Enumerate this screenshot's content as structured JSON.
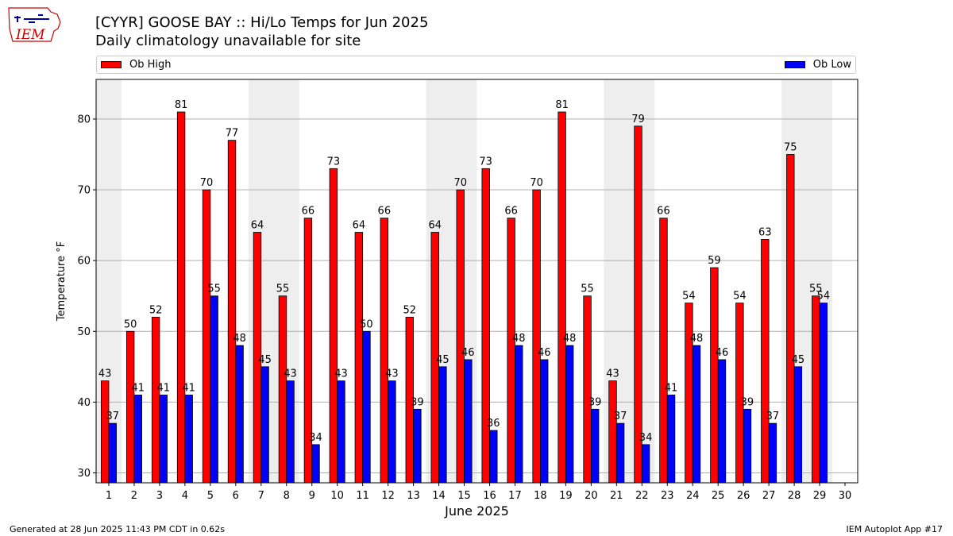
{
  "header": {
    "title_line1": "[CYYR] GOOSE BAY :: Hi/Lo Temps for Jun 2025",
    "title_line2": "Daily climatology unavailable for site",
    "logo_text": "IEM"
  },
  "footer": {
    "left": "Generated at 28 Jun 2025 11:43 PM CDT in 0.62s",
    "right": "IEM Autoplot App #17"
  },
  "colors": {
    "high": "#ff0000",
    "low": "#0000ff",
    "weekend_band": "#eeeeee",
    "grid": "#b0b0b0"
  },
  "chart_data": {
    "type": "bar",
    "xlabel": "June 2025",
    "ylabel": "Temperature °F",
    "ylim": [
      28.6,
      85.6
    ],
    "yticks": [
      30,
      40,
      50,
      60,
      70,
      80
    ],
    "xlim": [
      0.5,
      30.5
    ],
    "grid": "horizontal",
    "legend": "top (Ob High left, Ob Low right)",
    "categories": [
      "1",
      "2",
      "3",
      "4",
      "5",
      "6",
      "7",
      "8",
      "9",
      "10",
      "11",
      "12",
      "13",
      "14",
      "15",
      "16",
      "17",
      "18",
      "19",
      "20",
      "21",
      "22",
      "23",
      "24",
      "25",
      "26",
      "27",
      "28",
      "29",
      "30"
    ],
    "weekend_bands": [
      [
        0.5,
        1.5
      ],
      [
        6.5,
        8.5
      ],
      [
        13.5,
        15.5
      ],
      [
        20.5,
        22.5
      ],
      [
        27.5,
        29.5
      ]
    ],
    "series": [
      {
        "name": "Ob High",
        "values": [
          43,
          50,
          52,
          81,
          70,
          77,
          64,
          55,
          66,
          73,
          64,
          66,
          52,
          64,
          70,
          73,
          66,
          70,
          81,
          55,
          43,
          79,
          66,
          54,
          59,
          54,
          63,
          75,
          55,
          null
        ]
      },
      {
        "name": "Ob Low",
        "values": [
          37,
          41,
          41,
          41,
          55,
          48,
          45,
          43,
          34,
          43,
          50,
          43,
          39,
          45,
          46,
          36,
          48,
          46,
          48,
          39,
          37,
          34,
          41,
          48,
          46,
          39,
          37,
          45,
          54,
          null
        ]
      }
    ]
  }
}
